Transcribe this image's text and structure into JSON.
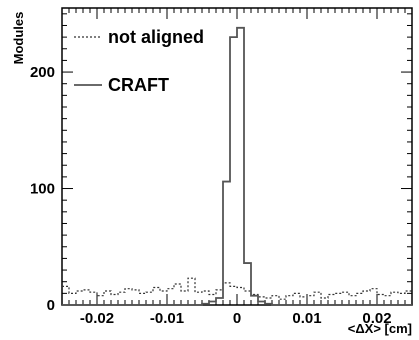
{
  "chart_data": {
    "type": "histogram",
    "xlabel": "<ΔX> [cm]",
    "ylabel": "Modules",
    "xlim": [
      -0.025,
      0.025
    ],
    "ylim": [
      0,
      255
    ],
    "bin_width": 0.001,
    "x_ticks": [
      "-0.02",
      "-0.01",
      "0",
      "0.01",
      "0.02"
    ],
    "x_tick_values": [
      -0.02,
      -0.01,
      0,
      0.01,
      0.02
    ],
    "y_ticks": [
      "0",
      "100",
      "200"
    ],
    "y_tick_values": [
      0,
      100,
      200
    ],
    "grid": false,
    "legend_position": "top-left",
    "series": [
      {
        "name": "not aligned",
        "line_style": "dotted",
        "color": "#333333",
        "bin_lefts": [
          -0.025,
          -0.024,
          -0.023,
          -0.022,
          -0.021,
          -0.02,
          -0.019,
          -0.018,
          -0.017,
          -0.016,
          -0.015,
          -0.014,
          -0.013,
          -0.012,
          -0.011,
          -0.01,
          -0.009,
          -0.008,
          -0.007,
          -0.006,
          -0.005,
          -0.004,
          -0.003,
          -0.002,
          -0.001,
          0.0,
          0.001,
          0.002,
          0.003,
          0.004,
          0.005,
          0.006,
          0.007,
          0.008,
          0.009,
          0.01,
          0.011,
          0.012,
          0.013,
          0.014,
          0.015,
          0.016,
          0.017,
          0.018,
          0.019,
          0.02,
          0.021,
          0.022,
          0.023,
          0.024
        ],
        "values": [
          16,
          10,
          12,
          13,
          11,
          8,
          12,
          9,
          11,
          14,
          13,
          10,
          11,
          15,
          12,
          14,
          18,
          12,
          23,
          11,
          12,
          9,
          13,
          19,
          16,
          15,
          12,
          9,
          7,
          6,
          8,
          5,
          8,
          10,
          7,
          8,
          11,
          6,
          9,
          10,
          11,
          8,
          10,
          12,
          14,
          9,
          8,
          11,
          10,
          12
        ]
      },
      {
        "name": "CRAFT",
        "line_style": "solid",
        "color": "#555555",
        "bin_lefts": [
          -0.025,
          -0.024,
          -0.023,
          -0.022,
          -0.021,
          -0.02,
          -0.019,
          -0.018,
          -0.017,
          -0.016,
          -0.015,
          -0.014,
          -0.013,
          -0.012,
          -0.011,
          -0.01,
          -0.009,
          -0.008,
          -0.007,
          -0.006,
          -0.005,
          -0.004,
          -0.003,
          -0.002,
          -0.001,
          0.0,
          0.001,
          0.002,
          0.003,
          0.004,
          0.005,
          0.006,
          0.007,
          0.008,
          0.009,
          0.01,
          0.011,
          0.012,
          0.013,
          0.014,
          0.015,
          0.016,
          0.017,
          0.018,
          0.019,
          0.02,
          0.021,
          0.022,
          0.023,
          0.024
        ],
        "values": [
          0,
          0,
          0,
          0,
          0,
          0,
          0,
          0,
          0,
          0,
          0,
          0,
          0,
          0,
          0,
          0,
          0,
          0,
          0,
          0,
          1,
          3,
          6,
          106,
          230,
          238,
          36,
          8,
          3,
          1,
          0,
          0,
          0,
          0,
          0,
          0,
          0,
          0,
          0,
          0,
          0,
          0,
          0,
          0,
          0,
          0,
          0,
          0,
          0,
          0
        ]
      }
    ]
  }
}
